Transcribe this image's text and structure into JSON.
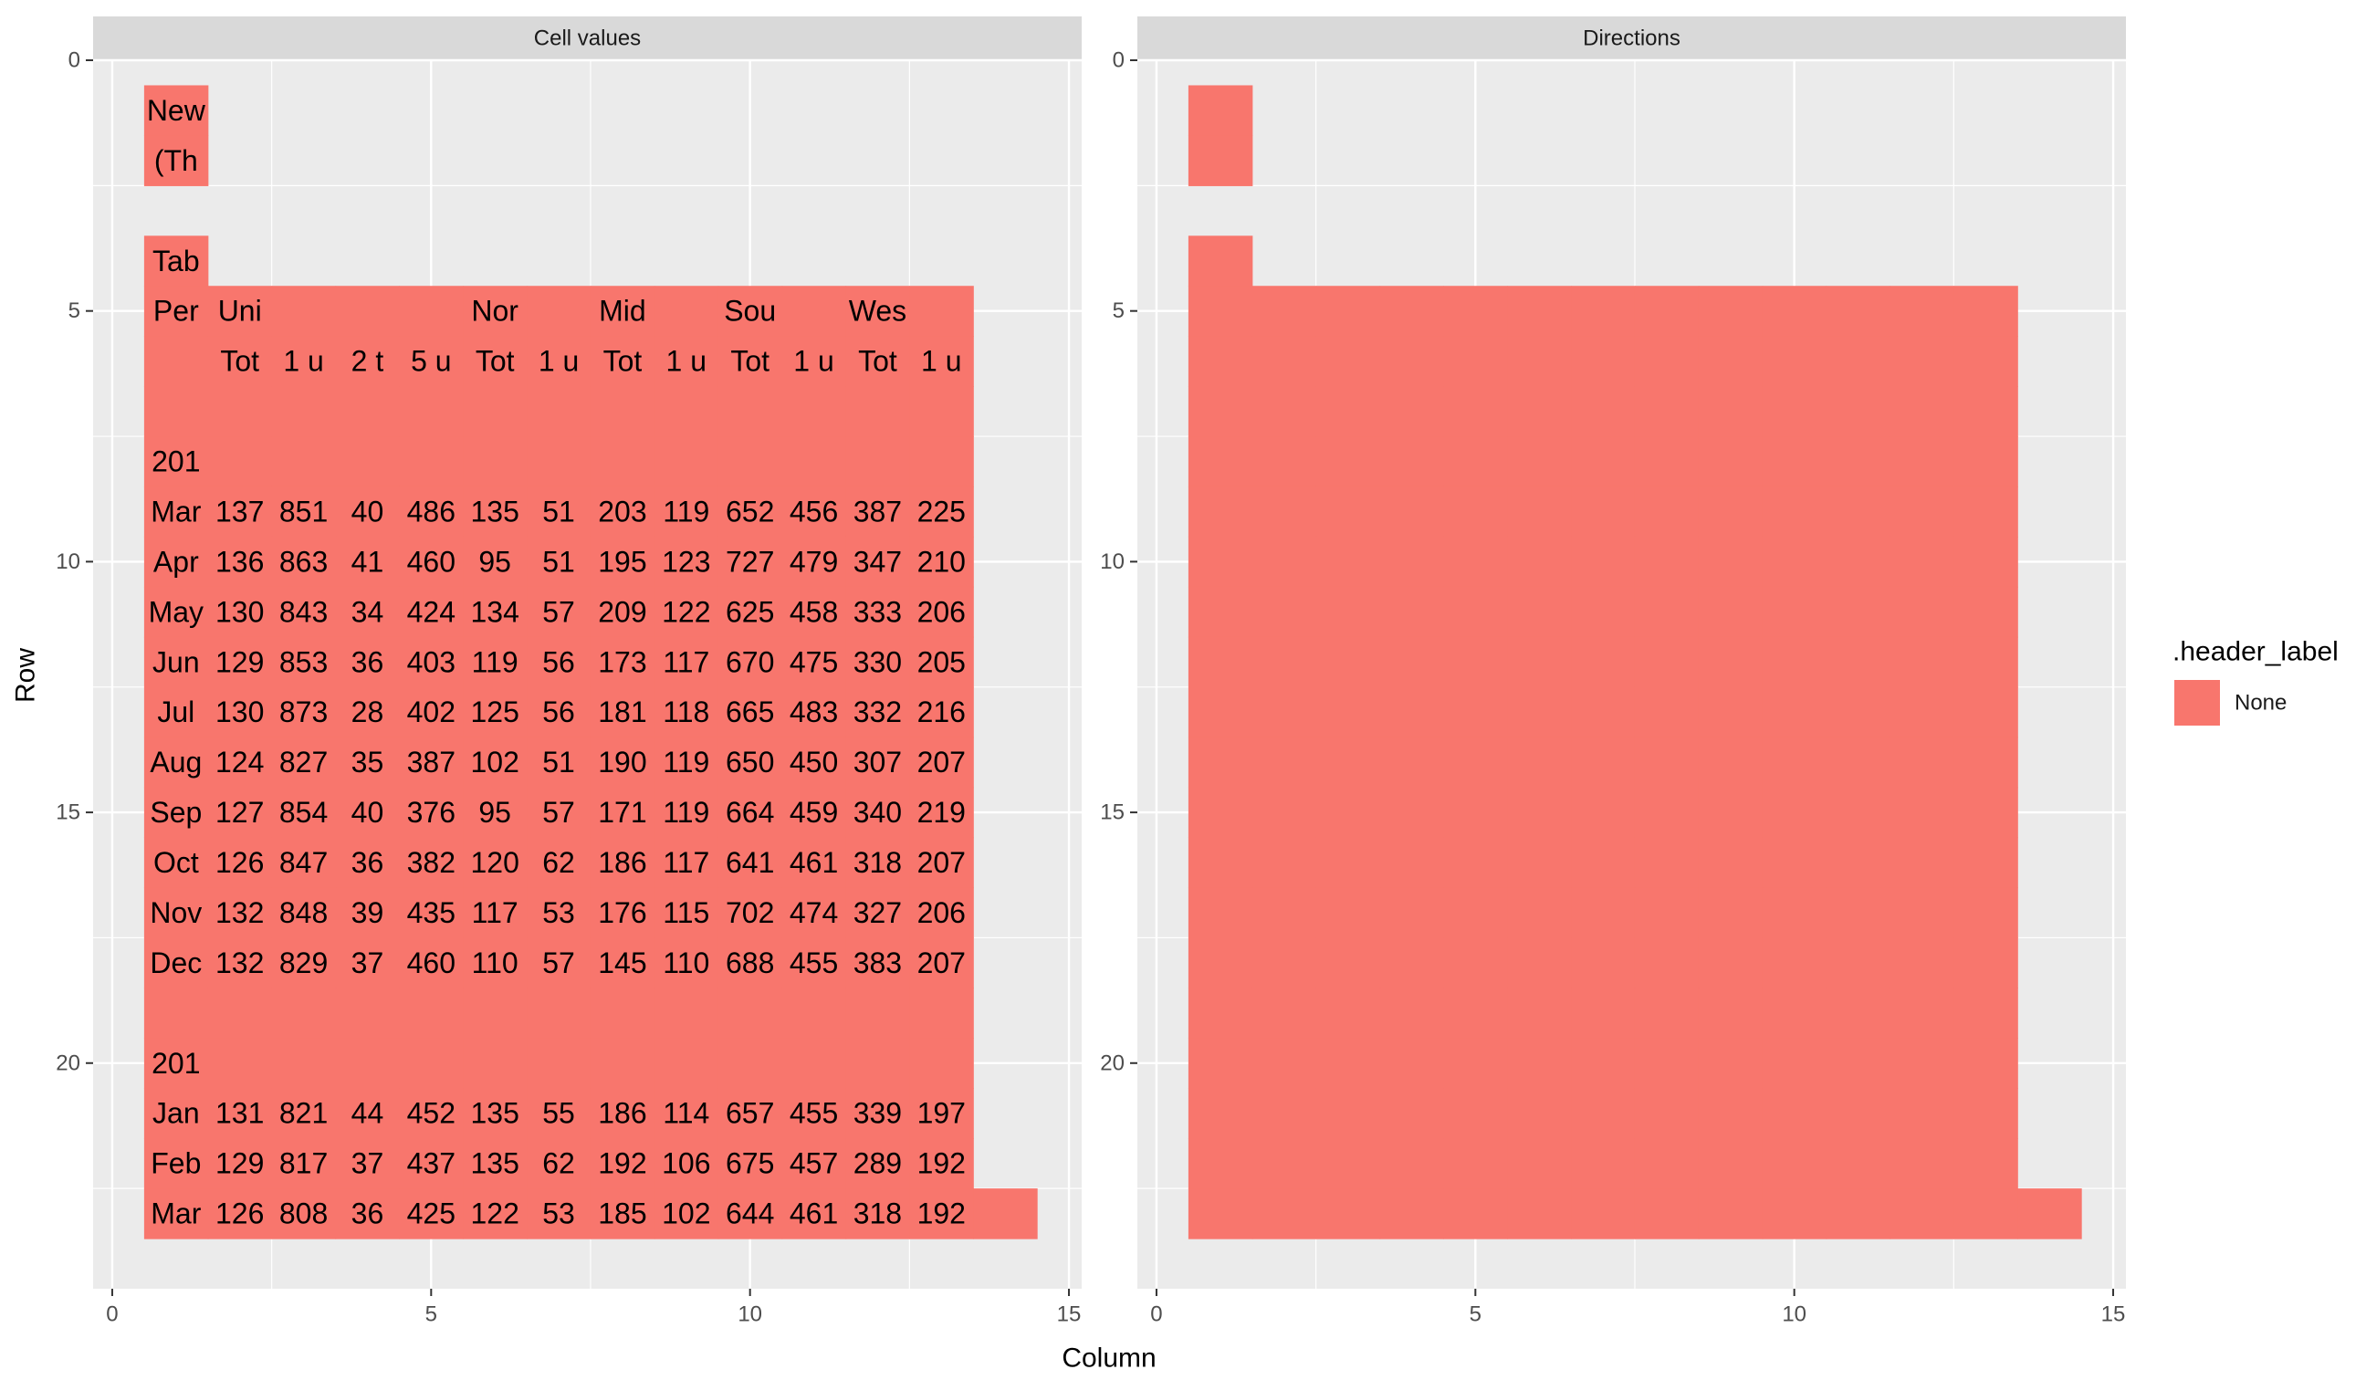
{
  "chart_data": {
    "type": "heatmap",
    "xlabel": "Column",
    "ylabel": "Row",
    "xlim": [
      -0.3,
      15.2
    ],
    "ylim": [
      0,
      24.5
    ],
    "y_reversed": true,
    "x_ticks": [
      0,
      5,
      10,
      15
    ],
    "y_ticks": [
      0,
      5,
      10,
      15,
      20
    ],
    "x_tick_labels": [
      "0",
      "5",
      "10",
      "15"
    ],
    "y_tick_labels": [
      "0",
      "5",
      "10",
      "15",
      "20"
    ],
    "grid": true,
    "fill_color": "#F8766D",
    "panel_color": "#EBEBEB",
    "strip_color": "#D9D9D9",
    "legend": {
      "title": ".header_label",
      "placement": "right",
      "entries": [
        {
          "label": "None",
          "color": "#F8766D"
        }
      ]
    },
    "panels": [
      {
        "title": "Cell values",
        "show_text": true
      },
      {
        "title": "Directions",
        "show_text": false
      }
    ],
    "cells": [
      {
        "row": 1,
        "col": 1,
        "text": "New"
      },
      {
        "row": 2,
        "col": 1,
        "text": "(Th"
      },
      {
        "row": 4,
        "col": 1,
        "text": "Tab"
      },
      {
        "row": 5,
        "col": 1,
        "text": "Per"
      },
      {
        "row": 5,
        "col": 2,
        "text": "Uni"
      },
      {
        "row": 5,
        "col": 3,
        "text": ""
      },
      {
        "row": 5,
        "col": 4,
        "text": ""
      },
      {
        "row": 5,
        "col": 5,
        "text": ""
      },
      {
        "row": 5,
        "col": 6,
        "text": "Nor"
      },
      {
        "row": 5,
        "col": 7,
        "text": ""
      },
      {
        "row": 5,
        "col": 8,
        "text": "Mid"
      },
      {
        "row": 5,
        "col": 9,
        "text": ""
      },
      {
        "row": 5,
        "col": 10,
        "text": "Sou"
      },
      {
        "row": 5,
        "col": 11,
        "text": ""
      },
      {
        "row": 5,
        "col": 12,
        "text": "Wes"
      },
      {
        "row": 5,
        "col": 13,
        "text": ""
      },
      {
        "row": 6,
        "col": 1,
        "text": ""
      },
      {
        "row": 6,
        "col": 2,
        "text": "Tot"
      },
      {
        "row": 6,
        "col": 3,
        "text": "1 u"
      },
      {
        "row": 6,
        "col": 4,
        "text": "2 t"
      },
      {
        "row": 6,
        "col": 5,
        "text": "5 u"
      },
      {
        "row": 6,
        "col": 6,
        "text": "Tot"
      },
      {
        "row": 6,
        "col": 7,
        "text": "1 u"
      },
      {
        "row": 6,
        "col": 8,
        "text": "Tot"
      },
      {
        "row": 6,
        "col": 9,
        "text": "1 u"
      },
      {
        "row": 6,
        "col": 10,
        "text": "Tot"
      },
      {
        "row": 6,
        "col": 11,
        "text": "1 u"
      },
      {
        "row": 6,
        "col": 12,
        "text": "Tot"
      },
      {
        "row": 6,
        "col": 13,
        "text": "1 u"
      },
      {
        "row": 7,
        "col": 1,
        "text": ""
      },
      {
        "row": 7,
        "col": 2,
        "text": ""
      },
      {
        "row": 7,
        "col": 3,
        "text": ""
      },
      {
        "row": 7,
        "col": 4,
        "text": ""
      },
      {
        "row": 7,
        "col": 5,
        "text": ""
      },
      {
        "row": 7,
        "col": 6,
        "text": ""
      },
      {
        "row": 7,
        "col": 7,
        "text": ""
      },
      {
        "row": 7,
        "col": 8,
        "text": ""
      },
      {
        "row": 7,
        "col": 9,
        "text": ""
      },
      {
        "row": 7,
        "col": 10,
        "text": ""
      },
      {
        "row": 7,
        "col": 11,
        "text": ""
      },
      {
        "row": 7,
        "col": 12,
        "text": ""
      },
      {
        "row": 7,
        "col": 13,
        "text": ""
      },
      {
        "row": 8,
        "col": 1,
        "text": "201"
      },
      {
        "row": 8,
        "col": 2,
        "text": ""
      },
      {
        "row": 8,
        "col": 3,
        "text": ""
      },
      {
        "row": 8,
        "col": 4,
        "text": ""
      },
      {
        "row": 8,
        "col": 5,
        "text": ""
      },
      {
        "row": 8,
        "col": 6,
        "text": ""
      },
      {
        "row": 8,
        "col": 7,
        "text": ""
      },
      {
        "row": 8,
        "col": 8,
        "text": ""
      },
      {
        "row": 8,
        "col": 9,
        "text": ""
      },
      {
        "row": 8,
        "col": 10,
        "text": ""
      },
      {
        "row": 8,
        "col": 11,
        "text": ""
      },
      {
        "row": 8,
        "col": 12,
        "text": ""
      },
      {
        "row": 8,
        "col": 13,
        "text": ""
      },
      {
        "row": 9,
        "col": 1,
        "text": "Mar"
      },
      {
        "row": 9,
        "col": 2,
        "text": "137"
      },
      {
        "row": 9,
        "col": 3,
        "text": "851"
      },
      {
        "row": 9,
        "col": 4,
        "text": "40"
      },
      {
        "row": 9,
        "col": 5,
        "text": "486"
      },
      {
        "row": 9,
        "col": 6,
        "text": "135"
      },
      {
        "row": 9,
        "col": 7,
        "text": "51"
      },
      {
        "row": 9,
        "col": 8,
        "text": "203"
      },
      {
        "row": 9,
        "col": 9,
        "text": "119"
      },
      {
        "row": 9,
        "col": 10,
        "text": "652"
      },
      {
        "row": 9,
        "col": 11,
        "text": "456"
      },
      {
        "row": 9,
        "col": 12,
        "text": "387"
      },
      {
        "row": 9,
        "col": 13,
        "text": "225"
      },
      {
        "row": 10,
        "col": 1,
        "text": "Apr"
      },
      {
        "row": 10,
        "col": 2,
        "text": "136"
      },
      {
        "row": 10,
        "col": 3,
        "text": "863"
      },
      {
        "row": 10,
        "col": 4,
        "text": "41"
      },
      {
        "row": 10,
        "col": 5,
        "text": "460"
      },
      {
        "row": 10,
        "col": 6,
        "text": "95"
      },
      {
        "row": 10,
        "col": 7,
        "text": "51"
      },
      {
        "row": 10,
        "col": 8,
        "text": "195"
      },
      {
        "row": 10,
        "col": 9,
        "text": "123"
      },
      {
        "row": 10,
        "col": 10,
        "text": "727"
      },
      {
        "row": 10,
        "col": 11,
        "text": "479"
      },
      {
        "row": 10,
        "col": 12,
        "text": "347"
      },
      {
        "row": 10,
        "col": 13,
        "text": "210"
      },
      {
        "row": 11,
        "col": 1,
        "text": "May"
      },
      {
        "row": 11,
        "col": 2,
        "text": "130"
      },
      {
        "row": 11,
        "col": 3,
        "text": "843"
      },
      {
        "row": 11,
        "col": 4,
        "text": "34"
      },
      {
        "row": 11,
        "col": 5,
        "text": "424"
      },
      {
        "row": 11,
        "col": 6,
        "text": "134"
      },
      {
        "row": 11,
        "col": 7,
        "text": "57"
      },
      {
        "row": 11,
        "col": 8,
        "text": "209"
      },
      {
        "row": 11,
        "col": 9,
        "text": "122"
      },
      {
        "row": 11,
        "col": 10,
        "text": "625"
      },
      {
        "row": 11,
        "col": 11,
        "text": "458"
      },
      {
        "row": 11,
        "col": 12,
        "text": "333"
      },
      {
        "row": 11,
        "col": 13,
        "text": "206"
      },
      {
        "row": 12,
        "col": 1,
        "text": "Jun"
      },
      {
        "row": 12,
        "col": 2,
        "text": "129"
      },
      {
        "row": 12,
        "col": 3,
        "text": "853"
      },
      {
        "row": 12,
        "col": 4,
        "text": "36"
      },
      {
        "row": 12,
        "col": 5,
        "text": "403"
      },
      {
        "row": 12,
        "col": 6,
        "text": "119"
      },
      {
        "row": 12,
        "col": 7,
        "text": "56"
      },
      {
        "row": 12,
        "col": 8,
        "text": "173"
      },
      {
        "row": 12,
        "col": 9,
        "text": "117"
      },
      {
        "row": 12,
        "col": 10,
        "text": "670"
      },
      {
        "row": 12,
        "col": 11,
        "text": "475"
      },
      {
        "row": 12,
        "col": 12,
        "text": "330"
      },
      {
        "row": 12,
        "col": 13,
        "text": "205"
      },
      {
        "row": 13,
        "col": 1,
        "text": "Jul"
      },
      {
        "row": 13,
        "col": 2,
        "text": "130"
      },
      {
        "row": 13,
        "col": 3,
        "text": "873"
      },
      {
        "row": 13,
        "col": 4,
        "text": "28"
      },
      {
        "row": 13,
        "col": 5,
        "text": "402"
      },
      {
        "row": 13,
        "col": 6,
        "text": "125"
      },
      {
        "row": 13,
        "col": 7,
        "text": "56"
      },
      {
        "row": 13,
        "col": 8,
        "text": "181"
      },
      {
        "row": 13,
        "col": 9,
        "text": "118"
      },
      {
        "row": 13,
        "col": 10,
        "text": "665"
      },
      {
        "row": 13,
        "col": 11,
        "text": "483"
      },
      {
        "row": 13,
        "col": 12,
        "text": "332"
      },
      {
        "row": 13,
        "col": 13,
        "text": "216"
      },
      {
        "row": 14,
        "col": 1,
        "text": "Aug"
      },
      {
        "row": 14,
        "col": 2,
        "text": "124"
      },
      {
        "row": 14,
        "col": 3,
        "text": "827"
      },
      {
        "row": 14,
        "col": 4,
        "text": "35"
      },
      {
        "row": 14,
        "col": 5,
        "text": "387"
      },
      {
        "row": 14,
        "col": 6,
        "text": "102"
      },
      {
        "row": 14,
        "col": 7,
        "text": "51"
      },
      {
        "row": 14,
        "col": 8,
        "text": "190"
      },
      {
        "row": 14,
        "col": 9,
        "text": "119"
      },
      {
        "row": 14,
        "col": 10,
        "text": "650"
      },
      {
        "row": 14,
        "col": 11,
        "text": "450"
      },
      {
        "row": 14,
        "col": 12,
        "text": "307"
      },
      {
        "row": 14,
        "col": 13,
        "text": "207"
      },
      {
        "row": 15,
        "col": 1,
        "text": "Sep"
      },
      {
        "row": 15,
        "col": 2,
        "text": "127"
      },
      {
        "row": 15,
        "col": 3,
        "text": "854"
      },
      {
        "row": 15,
        "col": 4,
        "text": "40"
      },
      {
        "row": 15,
        "col": 5,
        "text": "376"
      },
      {
        "row": 15,
        "col": 6,
        "text": "95"
      },
      {
        "row": 15,
        "col": 7,
        "text": "57"
      },
      {
        "row": 15,
        "col": 8,
        "text": "171"
      },
      {
        "row": 15,
        "col": 9,
        "text": "119"
      },
      {
        "row": 15,
        "col": 10,
        "text": "664"
      },
      {
        "row": 15,
        "col": 11,
        "text": "459"
      },
      {
        "row": 15,
        "col": 12,
        "text": "340"
      },
      {
        "row": 15,
        "col": 13,
        "text": "219"
      },
      {
        "row": 16,
        "col": 1,
        "text": "Oct"
      },
      {
        "row": 16,
        "col": 2,
        "text": "126"
      },
      {
        "row": 16,
        "col": 3,
        "text": "847"
      },
      {
        "row": 16,
        "col": 4,
        "text": "36"
      },
      {
        "row": 16,
        "col": 5,
        "text": "382"
      },
      {
        "row": 16,
        "col": 6,
        "text": "120"
      },
      {
        "row": 16,
        "col": 7,
        "text": "62"
      },
      {
        "row": 16,
        "col": 8,
        "text": "186"
      },
      {
        "row": 16,
        "col": 9,
        "text": "117"
      },
      {
        "row": 16,
        "col": 10,
        "text": "641"
      },
      {
        "row": 16,
        "col": 11,
        "text": "461"
      },
      {
        "row": 16,
        "col": 12,
        "text": "318"
      },
      {
        "row": 16,
        "col": 13,
        "text": "207"
      },
      {
        "row": 17,
        "col": 1,
        "text": "Nov"
      },
      {
        "row": 17,
        "col": 2,
        "text": "132"
      },
      {
        "row": 17,
        "col": 3,
        "text": "848"
      },
      {
        "row": 17,
        "col": 4,
        "text": "39"
      },
      {
        "row": 17,
        "col": 5,
        "text": "435"
      },
      {
        "row": 17,
        "col": 6,
        "text": "117"
      },
      {
        "row": 17,
        "col": 7,
        "text": "53"
      },
      {
        "row": 17,
        "col": 8,
        "text": "176"
      },
      {
        "row": 17,
        "col": 9,
        "text": "115"
      },
      {
        "row": 17,
        "col": 10,
        "text": "702"
      },
      {
        "row": 17,
        "col": 11,
        "text": "474"
      },
      {
        "row": 17,
        "col": 12,
        "text": "327"
      },
      {
        "row": 17,
        "col": 13,
        "text": "206"
      },
      {
        "row": 18,
        "col": 1,
        "text": "Dec"
      },
      {
        "row": 18,
        "col": 2,
        "text": "132"
      },
      {
        "row": 18,
        "col": 3,
        "text": "829"
      },
      {
        "row": 18,
        "col": 4,
        "text": "37"
      },
      {
        "row": 18,
        "col": 5,
        "text": "460"
      },
      {
        "row": 18,
        "col": 6,
        "text": "110"
      },
      {
        "row": 18,
        "col": 7,
        "text": "57"
      },
      {
        "row": 18,
        "col": 8,
        "text": "145"
      },
      {
        "row": 18,
        "col": 9,
        "text": "110"
      },
      {
        "row": 18,
        "col": 10,
        "text": "688"
      },
      {
        "row": 18,
        "col": 11,
        "text": "455"
      },
      {
        "row": 18,
        "col": 12,
        "text": "383"
      },
      {
        "row": 18,
        "col": 13,
        "text": "207"
      },
      {
        "row": 19,
        "col": 1,
        "text": ""
      },
      {
        "row": 19,
        "col": 2,
        "text": ""
      },
      {
        "row": 19,
        "col": 3,
        "text": ""
      },
      {
        "row": 19,
        "col": 4,
        "text": ""
      },
      {
        "row": 19,
        "col": 5,
        "text": ""
      },
      {
        "row": 19,
        "col": 6,
        "text": ""
      },
      {
        "row": 19,
        "col": 7,
        "text": ""
      },
      {
        "row": 19,
        "col": 8,
        "text": ""
      },
      {
        "row": 19,
        "col": 9,
        "text": ""
      },
      {
        "row": 19,
        "col": 10,
        "text": ""
      },
      {
        "row": 19,
        "col": 11,
        "text": ""
      },
      {
        "row": 19,
        "col": 12,
        "text": ""
      },
      {
        "row": 19,
        "col": 13,
        "text": ""
      },
      {
        "row": 20,
        "col": 1,
        "text": "201"
      },
      {
        "row": 20,
        "col": 2,
        "text": ""
      },
      {
        "row": 20,
        "col": 3,
        "text": ""
      },
      {
        "row": 20,
        "col": 4,
        "text": ""
      },
      {
        "row": 20,
        "col": 5,
        "text": ""
      },
      {
        "row": 20,
        "col": 6,
        "text": ""
      },
      {
        "row": 20,
        "col": 7,
        "text": ""
      },
      {
        "row": 20,
        "col": 8,
        "text": ""
      },
      {
        "row": 20,
        "col": 9,
        "text": ""
      },
      {
        "row": 20,
        "col": 10,
        "text": ""
      },
      {
        "row": 20,
        "col": 11,
        "text": ""
      },
      {
        "row": 20,
        "col": 12,
        "text": ""
      },
      {
        "row": 20,
        "col": 13,
        "text": ""
      },
      {
        "row": 21,
        "col": 1,
        "text": "Jan"
      },
      {
        "row": 21,
        "col": 2,
        "text": "131"
      },
      {
        "row": 21,
        "col": 3,
        "text": "821"
      },
      {
        "row": 21,
        "col": 4,
        "text": "44"
      },
      {
        "row": 21,
        "col": 5,
        "text": "452"
      },
      {
        "row": 21,
        "col": 6,
        "text": "135"
      },
      {
        "row": 21,
        "col": 7,
        "text": "55"
      },
      {
        "row": 21,
        "col": 8,
        "text": "186"
      },
      {
        "row": 21,
        "col": 9,
        "text": "114"
      },
      {
        "row": 21,
        "col": 10,
        "text": "657"
      },
      {
        "row": 21,
        "col": 11,
        "text": "455"
      },
      {
        "row": 21,
        "col": 12,
        "text": "339"
      },
      {
        "row": 21,
        "col": 13,
        "text": "197"
      },
      {
        "row": 22,
        "col": 1,
        "text": "Feb"
      },
      {
        "row": 22,
        "col": 2,
        "text": "129"
      },
      {
        "row": 22,
        "col": 3,
        "text": "817"
      },
      {
        "row": 22,
        "col": 4,
        "text": "37"
      },
      {
        "row": 22,
        "col": 5,
        "text": "437"
      },
      {
        "row": 22,
        "col": 6,
        "text": "135"
      },
      {
        "row": 22,
        "col": 7,
        "text": "62"
      },
      {
        "row": 22,
        "col": 8,
        "text": "192"
      },
      {
        "row": 22,
        "col": 9,
        "text": "106"
      },
      {
        "row": 22,
        "col": 10,
        "text": "675"
      },
      {
        "row": 22,
        "col": 11,
        "text": "457"
      },
      {
        "row": 22,
        "col": 12,
        "text": "289"
      },
      {
        "row": 22,
        "col": 13,
        "text": "192"
      },
      {
        "row": 23,
        "col": 1,
        "text": "Mar"
      },
      {
        "row": 23,
        "col": 2,
        "text": "126"
      },
      {
        "row": 23,
        "col": 3,
        "text": "808"
      },
      {
        "row": 23,
        "col": 4,
        "text": "36"
      },
      {
        "row": 23,
        "col": 5,
        "text": "425"
      },
      {
        "row": 23,
        "col": 6,
        "text": "122"
      },
      {
        "row": 23,
        "col": 7,
        "text": "53"
      },
      {
        "row": 23,
        "col": 8,
        "text": "185"
      },
      {
        "row": 23,
        "col": 9,
        "text": "102"
      },
      {
        "row": 23,
        "col": 10,
        "text": "644"
      },
      {
        "row": 23,
        "col": 11,
        "text": "461"
      },
      {
        "row": 23,
        "col": 12,
        "text": "318"
      },
      {
        "row": 23,
        "col": 13,
        "text": "192"
      },
      {
        "row": 23,
        "col": 14,
        "text": ""
      }
    ]
  }
}
